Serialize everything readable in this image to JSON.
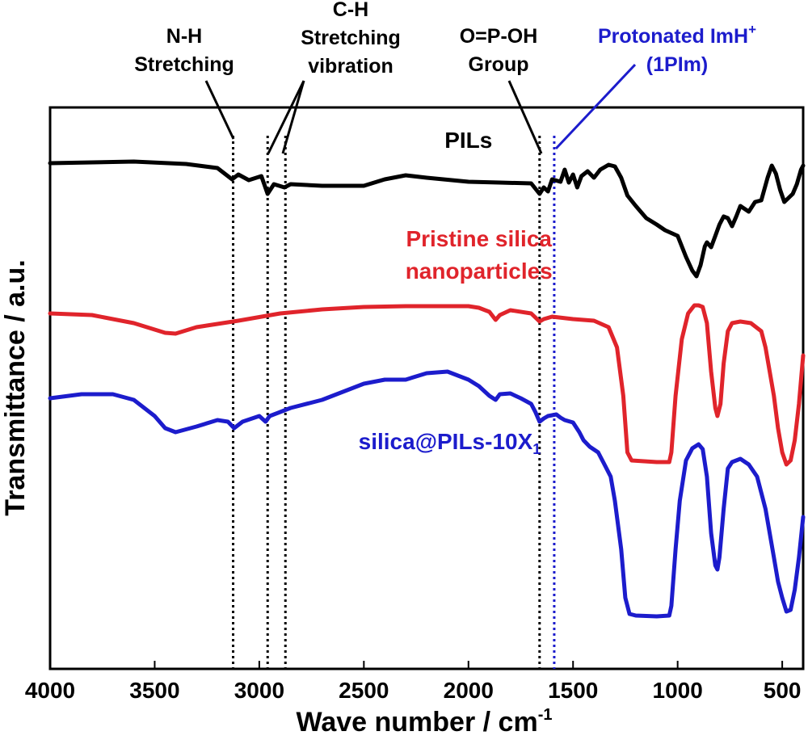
{
  "chart_data": {
    "type": "line",
    "xlabel": "Wave number / cm",
    "xlabel_sup": "-1",
    "ylabel": "Transmittance / a.u.",
    "xlim": [
      4000,
      400
    ],
    "x_reversed": true,
    "grid": false,
    "x_ticks": [
      {
        "value": 4000,
        "label": "4000"
      },
      {
        "value": 3500,
        "label": "3500"
      },
      {
        "value": 3000,
        "label": "3000"
      },
      {
        "value": 2500,
        "label": "2500"
      },
      {
        "value": 2000,
        "label": "2000"
      },
      {
        "value": 1500,
        "label": "1500"
      },
      {
        "value": 1000,
        "label": "1000"
      },
      {
        "value": 500,
        "label": "500"
      }
    ],
    "series": [
      {
        "name": "PILs",
        "color": "#000000",
        "points": [
          [
            4000,
            202
          ],
          [
            3600,
            200
          ],
          [
            3350,
            203
          ],
          [
            3200,
            208
          ],
          [
            3130,
            222
          ],
          [
            3100,
            216
          ],
          [
            3050,
            223
          ],
          [
            2990,
            218
          ],
          [
            2960,
            240
          ],
          [
            2930,
            228
          ],
          [
            2880,
            232
          ],
          [
            2850,
            228
          ],
          [
            2700,
            230
          ],
          [
            2500,
            230
          ],
          [
            2400,
            222
          ],
          [
            2300,
            217
          ],
          [
            2200,
            220
          ],
          [
            2000,
            225
          ],
          [
            1850,
            226
          ],
          [
            1700,
            227
          ],
          [
            1660,
            240
          ],
          [
            1640,
            232
          ],
          [
            1620,
            237
          ],
          [
            1600,
            222
          ],
          [
            1560,
            225
          ],
          [
            1540,
            210
          ],
          [
            1520,
            226
          ],
          [
            1500,
            216
          ],
          [
            1480,
            232
          ],
          [
            1460,
            218
          ],
          [
            1430,
            212
          ],
          [
            1400,
            220
          ],
          [
            1370,
            210
          ],
          [
            1330,
            204
          ],
          [
            1300,
            206
          ],
          [
            1270,
            220
          ],
          [
            1240,
            242
          ],
          [
            1200,
            255
          ],
          [
            1150,
            270
          ],
          [
            1100,
            278
          ],
          [
            1060,
            285
          ],
          [
            1000,
            292
          ],
          [
            960,
            318
          ],
          [
            930,
            335
          ],
          [
            910,
            342
          ],
          [
            890,
            328
          ],
          [
            870,
            305
          ],
          [
            860,
            300
          ],
          [
            840,
            306
          ],
          [
            820,
            292
          ],
          [
            800,
            278
          ],
          [
            780,
            268
          ],
          [
            760,
            270
          ],
          [
            740,
            280
          ],
          [
            720,
            268
          ],
          [
            700,
            255
          ],
          [
            660,
            262
          ],
          [
            630,
            250
          ],
          [
            600,
            248
          ],
          [
            570,
            220
          ],
          [
            550,
            205
          ],
          [
            530,
            215
          ],
          [
            510,
            235
          ],
          [
            490,
            250
          ],
          [
            470,
            245
          ],
          [
            450,
            240
          ],
          [
            430,
            228
          ],
          [
            410,
            210
          ],
          [
            400,
            205
          ]
        ]
      },
      {
        "name": "Pristine silica nanoparticles",
        "color": "#e0242b",
        "points": [
          [
            4000,
            388
          ],
          [
            3800,
            390
          ],
          [
            3600,
            400
          ],
          [
            3450,
            412
          ],
          [
            3400,
            413
          ],
          [
            3300,
            405
          ],
          [
            3100,
            397
          ],
          [
            2900,
            388
          ],
          [
            2700,
            383
          ],
          [
            2500,
            380
          ],
          [
            2300,
            379
          ],
          [
            2000,
            379
          ],
          [
            1950,
            381
          ],
          [
            1900,
            386
          ],
          [
            1870,
            396
          ],
          [
            1850,
            390
          ],
          [
            1800,
            384
          ],
          [
            1700,
            388
          ],
          [
            1660,
            398
          ],
          [
            1640,
            395
          ],
          [
            1600,
            392
          ],
          [
            1500,
            395
          ],
          [
            1400,
            397
          ],
          [
            1330,
            405
          ],
          [
            1290,
            430
          ],
          [
            1260,
            490
          ],
          [
            1240,
            560
          ],
          [
            1220,
            570
          ],
          [
            1100,
            572
          ],
          [
            1040,
            572
          ],
          [
            1030,
            560
          ],
          [
            1010,
            490
          ],
          [
            980,
            420
          ],
          [
            950,
            388
          ],
          [
            920,
            378
          ],
          [
            900,
            378
          ],
          [
            880,
            380
          ],
          [
            860,
            400
          ],
          [
            840,
            460
          ],
          [
            820,
            505
          ],
          [
            810,
            515
          ],
          [
            795,
            500
          ],
          [
            780,
            450
          ],
          [
            760,
            410
          ],
          [
            740,
            400
          ],
          [
            700,
            398
          ],
          [
            650,
            400
          ],
          [
            600,
            410
          ],
          [
            580,
            430
          ],
          [
            560,
            460
          ],
          [
            540,
            490
          ],
          [
            520,
            530
          ],
          [
            500,
            560
          ],
          [
            480,
            575
          ],
          [
            460,
            570
          ],
          [
            440,
            545
          ],
          [
            420,
            500
          ],
          [
            400,
            440
          ]
        ]
      },
      {
        "name": "silica@PILs-10X1",
        "color": "#1c1ccc",
        "points": [
          [
            4000,
            493
          ],
          [
            3850,
            488
          ],
          [
            3700,
            488
          ],
          [
            3600,
            495
          ],
          [
            3500,
            515
          ],
          [
            3450,
            530
          ],
          [
            3400,
            535
          ],
          [
            3300,
            528
          ],
          [
            3200,
            520
          ],
          [
            3150,
            522
          ],
          [
            3120,
            530
          ],
          [
            3080,
            522
          ],
          [
            3000,
            515
          ],
          [
            2970,
            522
          ],
          [
            2950,
            515
          ],
          [
            2900,
            510
          ],
          [
            2850,
            505
          ],
          [
            2700,
            495
          ],
          [
            2500,
            475
          ],
          [
            2400,
            470
          ],
          [
            2300,
            470
          ],
          [
            2200,
            462
          ],
          [
            2100,
            460
          ],
          [
            2000,
            470
          ],
          [
            1950,
            478
          ],
          [
            1900,
            490
          ],
          [
            1870,
            495
          ],
          [
            1850,
            488
          ],
          [
            1800,
            487
          ],
          [
            1750,
            493
          ],
          [
            1700,
            500
          ],
          [
            1680,
            510
          ],
          [
            1660,
            522
          ],
          [
            1640,
            518
          ],
          [
            1620,
            515
          ],
          [
            1580,
            513
          ],
          [
            1560,
            517
          ],
          [
            1540,
            520
          ],
          [
            1500,
            523
          ],
          [
            1470,
            535
          ],
          [
            1450,
            545
          ],
          [
            1420,
            553
          ],
          [
            1380,
            560
          ],
          [
            1350,
            575
          ],
          [
            1320,
            590
          ],
          [
            1300,
            620
          ],
          [
            1270,
            680
          ],
          [
            1250,
            740
          ],
          [
            1230,
            760
          ],
          [
            1200,
            762
          ],
          [
            1100,
            763
          ],
          [
            1040,
            762
          ],
          [
            1030,
            750
          ],
          [
            1010,
            680
          ],
          [
            990,
            620
          ],
          [
            960,
            570
          ],
          [
            930,
            555
          ],
          [
            900,
            550
          ],
          [
            880,
            556
          ],
          [
            860,
            590
          ],
          [
            840,
            660
          ],
          [
            820,
            700
          ],
          [
            810,
            705
          ],
          [
            800,
            690
          ],
          [
            780,
            630
          ],
          [
            760,
            580
          ],
          [
            740,
            572
          ],
          [
            700,
            568
          ],
          [
            660,
            575
          ],
          [
            620,
            590
          ],
          [
            600,
            610
          ],
          [
            580,
            630
          ],
          [
            560,
            660
          ],
          [
            540,
            690
          ],
          [
            520,
            720
          ],
          [
            500,
            740
          ],
          [
            480,
            757
          ],
          [
            460,
            755
          ],
          [
            440,
            730
          ],
          [
            420,
            690
          ],
          [
            400,
            640
          ]
        ]
      }
    ],
    "series_labels": [
      {
        "text": "PILs",
        "color": "#000000",
        "x": 2000,
        "y": 183
      },
      {
        "text": "Pristine silica",
        "color": "#e0242b",
        "x": 1950,
        "y": 305
      },
      {
        "text": "nanoparticles",
        "color": "#e0242b",
        "x": 1950,
        "y": 345
      },
      {
        "text": "silica@PILs-10X",
        "sub": "1",
        "color": "#1c1ccc",
        "x": 2090,
        "y": 556
      }
    ],
    "marker_lines": [
      {
        "value": 3125,
        "color": "#000000"
      },
      {
        "value": 2960,
        "color": "#000000"
      },
      {
        "value": 2875,
        "color": "#000000"
      },
      {
        "value": 1660,
        "color": "#000000"
      },
      {
        "value": 1590,
        "color": "#1c1ccc"
      }
    ],
    "annotations": [
      {
        "lines": [
          "N-H",
          "Stretching"
        ],
        "color": "#000000",
        "x": 3300
      },
      {
        "lines": [
          "C-H",
          "Stretching",
          "vibration"
        ],
        "color": "#000000",
        "x": 2800
      },
      {
        "lines": [
          "O=P-OH",
          "Group"
        ],
        "color": "#000000",
        "x": 1850
      },
      {
        "lines": [
          "Protonated ImH",
          "(1PIm)"
        ],
        "sup": "+",
        "color": "#1c1ccc",
        "x": 1410
      }
    ]
  }
}
